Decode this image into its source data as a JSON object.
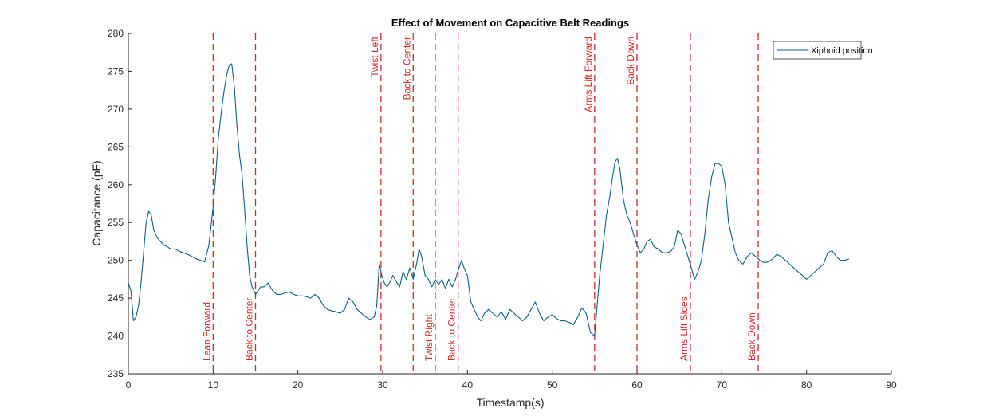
{
  "chart_data": {
    "type": "line",
    "title": "Effect of Movement on Capacitive Belt Readings",
    "xlabel": "Timestamp(s)",
    "ylabel": "Capacitance (pF)",
    "xlim": [
      0,
      90
    ],
    "ylim": [
      235,
      280
    ],
    "xticks": [
      0,
      10,
      20,
      30,
      40,
      50,
      60,
      70,
      80,
      90
    ],
    "yticks": [
      235,
      240,
      245,
      250,
      255,
      260,
      265,
      270,
      275,
      280
    ],
    "grid": false,
    "legend_position": "top-right",
    "series": [
      {
        "name": "Xiphoid position",
        "color": "#0b5e8a",
        "x": [
          0,
          0.3,
          0.6,
          0.9,
          1.2,
          1.5,
          1.8,
          2.1,
          2.4,
          2.7,
          3.0,
          3.4,
          3.8,
          4.2,
          4.6,
          5,
          5.5,
          6,
          6.5,
          7,
          7.5,
          8,
          8.5,
          9,
          9.5,
          10,
          10.3,
          10.6,
          11,
          11.3,
          11.6,
          11.9,
          12.2,
          12.5,
          12.8,
          13.1,
          13.4,
          13.7,
          14,
          14.3,
          14.6,
          15,
          15.3,
          15.6,
          16,
          16.5,
          17,
          17.5,
          18,
          18.5,
          19,
          19.5,
          20,
          20.5,
          21,
          21.5,
          22,
          22.5,
          23,
          23.5,
          24,
          24.5,
          25,
          25.5,
          26,
          26.5,
          27,
          27.5,
          28,
          28.5,
          29,
          29.3,
          29.6,
          29.9,
          30.2,
          30.5,
          30.8,
          31.2,
          31.6,
          32,
          32.4,
          32.8,
          33.2,
          33.6,
          34,
          34.3,
          34.6,
          35,
          35.4,
          35.8,
          36.2,
          36.6,
          37,
          37.4,
          37.8,
          38.2,
          38.6,
          39,
          39.3,
          39.6,
          40,
          40.4,
          40.8,
          41.2,
          41.6,
          42,
          42.5,
          43,
          43.5,
          44,
          44.5,
          45,
          45.5,
          46,
          46.5,
          47,
          47.5,
          48,
          48.5,
          49,
          49.5,
          50,
          50.5,
          51,
          51.5,
          52,
          52.5,
          53,
          53.5,
          54,
          54.5,
          55,
          55.3,
          55.6,
          56,
          56.4,
          56.8,
          57.1,
          57.4,
          57.7,
          58,
          58.4,
          58.8,
          59.2,
          59.6,
          60,
          60.4,
          60.8,
          61.2,
          61.6,
          62,
          62.5,
          63,
          63.5,
          64,
          64.4,
          64.8,
          65.2,
          65.6,
          66,
          66.4,
          66.8,
          67.2,
          67.6,
          68,
          68.4,
          68.8,
          69.2,
          69.6,
          70,
          70.4,
          70.8,
          71.2,
          71.6,
          72,
          72.5,
          73,
          73.5,
          74,
          74.5,
          75,
          75.5,
          76,
          76.5,
          77,
          77.5,
          78,
          78.5,
          79,
          79.5,
          80,
          80.5,
          81,
          81.5,
          82,
          82.5,
          83,
          83.5,
          84,
          84.5,
          85
        ],
        "values": [
          247,
          246,
          242,
          242.5,
          244,
          247,
          251,
          255,
          256.5,
          256,
          254,
          253,
          252.5,
          252,
          251.8,
          251.5,
          251.5,
          251.2,
          251,
          250.8,
          250.5,
          250.2,
          250,
          249.8,
          252,
          257,
          261,
          266,
          270,
          272.5,
          274.5,
          275.8,
          276,
          273,
          268,
          264,
          261.5,
          257,
          252,
          248,
          246.5,
          245.5,
          246,
          246.5,
          246.5,
          247,
          246,
          245.5,
          245.5,
          245.7,
          245.8,
          245.5,
          245.3,
          245.3,
          245.2,
          245,
          245.5,
          245,
          244,
          243.5,
          243.3,
          243.2,
          243,
          243.5,
          245,
          244.5,
          243.5,
          243,
          242.5,
          242.2,
          242.5,
          244,
          249.5,
          248,
          247,
          246.5,
          247,
          248,
          247.2,
          246.5,
          248.5,
          247.5,
          249,
          247.5,
          249.5,
          251.5,
          250.5,
          248,
          247.5,
          246.5,
          247.5,
          246.8,
          247.5,
          246.3,
          247.5,
          246.5,
          247.5,
          249,
          250,
          249,
          248,
          244.5,
          243.5,
          242.5,
          242,
          243,
          243.5,
          243,
          242.5,
          243.2,
          242.2,
          243.5,
          243,
          242.5,
          242,
          242.5,
          243.5,
          244.5,
          243,
          242,
          242.5,
          242.8,
          242.3,
          242,
          242,
          241.8,
          241.5,
          242.5,
          243.7,
          243,
          240.5,
          240,
          244,
          248,
          252,
          256,
          258.5,
          261,
          263,
          263.5,
          262,
          258,
          256,
          255,
          253.5,
          252,
          251,
          251.5,
          252.5,
          252.8,
          251.8,
          251.5,
          251,
          251,
          251.2,
          251.8,
          254,
          253.5,
          252,
          250.5,
          249,
          247.5,
          248.5,
          250,
          253.5,
          258,
          261,
          262.8,
          262.8,
          262.5,
          260,
          255,
          253,
          251,
          250,
          249.5,
          250.5,
          251,
          250.5,
          250,
          249.7,
          249.8,
          250.2,
          250.8,
          250.5,
          250,
          249.5,
          249,
          248.5,
          248,
          247.5,
          248,
          248.5,
          249,
          249.5,
          251,
          251.3,
          250.5,
          250,
          250,
          250.2
        ]
      }
    ],
    "events": [
      {
        "x": 10,
        "label": "Lean Forward",
        "label_pos": "bottom"
      },
      {
        "x": 15,
        "label": "Back to Center",
        "label_pos": "bottom"
      },
      {
        "x": 29.8,
        "label": "Twist Left",
        "label_pos": "top"
      },
      {
        "x": 33.6,
        "label": "Back to Center",
        "label_pos": "top"
      },
      {
        "x": 36.2,
        "label": "Twist Right",
        "label_pos": "bottom"
      },
      {
        "x": 38.9,
        "label": "Back to Center",
        "label_pos": "bottom"
      },
      {
        "x": 55,
        "label": "Arms Lift Forward",
        "label_pos": "top"
      },
      {
        "x": 60,
        "label": "Back Down",
        "label_pos": "top"
      },
      {
        "x": 66.3,
        "label": "Arms Lift Sides",
        "label_pos": "bottom"
      },
      {
        "x": 74.3,
        "label": "Back Down",
        "label_pos": "bottom"
      }
    ],
    "event_color": "#d62728"
  }
}
